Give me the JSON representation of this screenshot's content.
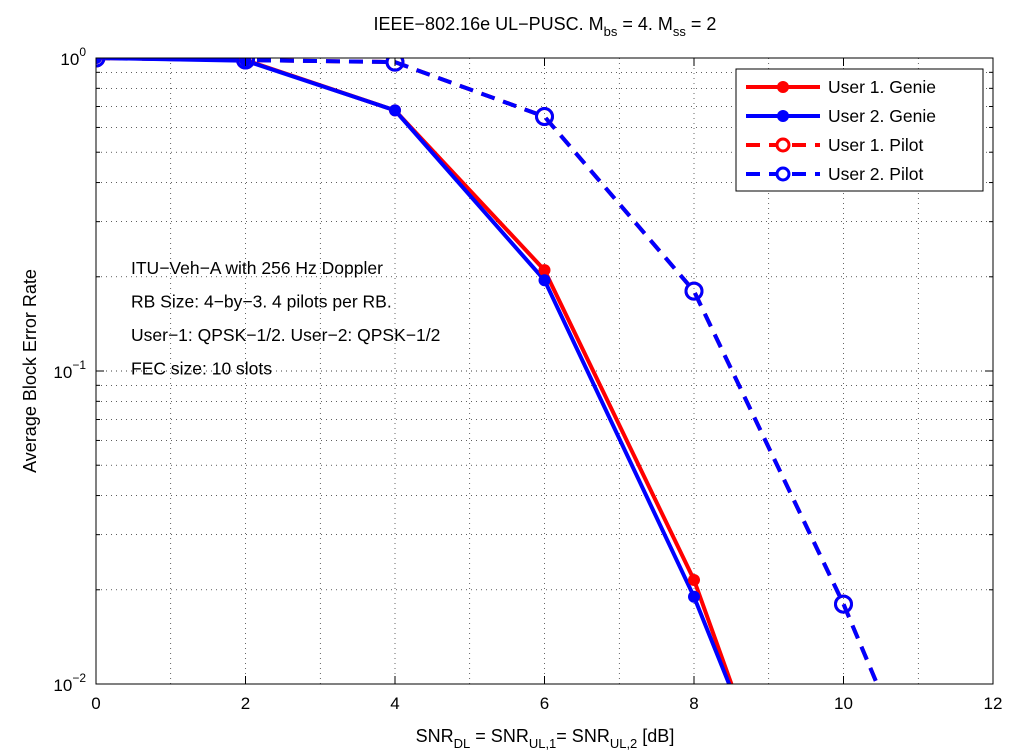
{
  "chart_data": {
    "type": "line",
    "title": {
      "base": "IEEE−802.16e UL−PUSC. M",
      "sub1": "bs",
      "mid": " = 4. M",
      "sub2": "ss",
      "tail": " = 2"
    },
    "xlabel": {
      "p1": "SNR",
      "s1": "DL",
      "p2": " = SNR",
      "s2": "UL,1",
      "p3": "= SNR",
      "s3": "UL,2",
      "p4": " [dB]"
    },
    "ylabel": "Average Block Error Rate",
    "xlim": [
      0,
      12
    ],
    "ylim": [
      0.01,
      1
    ],
    "yscale": "log",
    "grid": true,
    "x_ticks": [
      "0",
      "2",
      "4",
      "6",
      "8",
      "10",
      "12"
    ],
    "y_ticks": [
      {
        "base": "10",
        "exp": "0"
      },
      {
        "base": "10",
        "exp": "−1"
      },
      {
        "base": "10",
        "exp": "−2"
      }
    ],
    "legend_position": "top-right",
    "series": [
      {
        "name": "User 1. Genie",
        "color": "#ff0000",
        "line": "solid",
        "marker": "dot",
        "x": [
          0,
          2,
          4,
          6,
          8,
          8.5
        ],
        "y": [
          1.0,
          0.985,
          0.68,
          0.21,
          0.0215,
          0.01
        ]
      },
      {
        "name": "User 2. Genie",
        "color": "#0000ff",
        "line": "solid",
        "marker": "dot",
        "x": [
          0,
          2,
          4,
          6,
          8,
          8.47
        ],
        "y": [
          1.0,
          0.98,
          0.68,
          0.195,
          0.019,
          0.01
        ]
      },
      {
        "name": "User 1. Pilot",
        "color": "#ff0000",
        "line": "dashed",
        "marker": "circle",
        "x": [
          0,
          2,
          4,
          6,
          8,
          10,
          10.45
        ],
        "y": [
          1.0,
          0.985,
          0.97,
          0.65,
          0.18,
          0.018,
          0.01
        ]
      },
      {
        "name": "User 2. Pilot",
        "color": "#0000ff",
        "line": "dashed",
        "marker": "circle",
        "x": [
          0,
          2,
          4,
          6,
          8,
          10,
          10.45
        ],
        "y": [
          1.0,
          0.985,
          0.97,
          0.65,
          0.18,
          0.018,
          0.01
        ]
      }
    ],
    "annotations": [
      "ITU−Veh−A with 256 Hz Doppler",
      "RB Size: 4−by−3. 4 pilots per RB.",
      "User−1: QPSK−1/2. User−2: QPSK−1/2",
      "FEC size: 10 slots"
    ]
  }
}
